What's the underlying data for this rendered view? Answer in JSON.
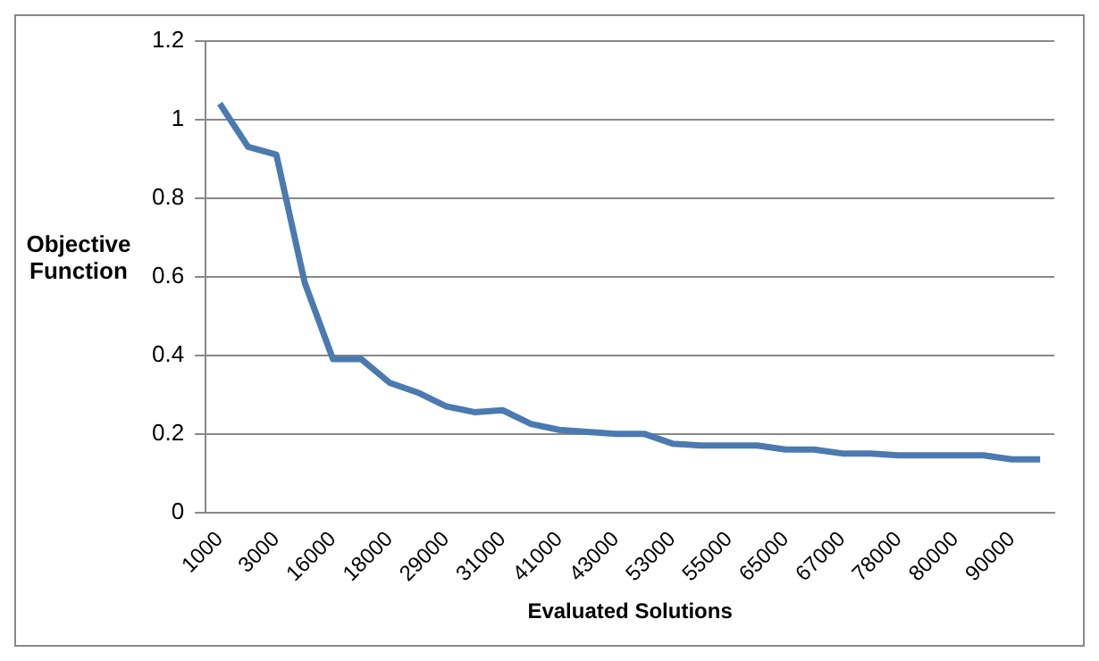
{
  "chart_data": {
    "type": "line",
    "xlabel": "Evaluated Solutions",
    "ylabel": "Objective Function",
    "categories": [
      "1000",
      null,
      "3000",
      null,
      "16000",
      null,
      "18000",
      null,
      "29000",
      null,
      "31000",
      null,
      "41000",
      null,
      "43000",
      null,
      "53000",
      null,
      "55000",
      null,
      "65000",
      null,
      "67000",
      null,
      "78000",
      null,
      "80000",
      null,
      "90000",
      null
    ],
    "series": [
      {
        "color": "#4a7ab0",
        "values": [
          1.04,
          0.93,
          0.91,
          0.585,
          0.39,
          0.39,
          0.33,
          0.305,
          0.27,
          0.255,
          0.26,
          0.225,
          0.21,
          0.205,
          0.2,
          0.2,
          0.175,
          0.17,
          0.17,
          0.17,
          0.16,
          0.16,
          0.15,
          0.15,
          0.145,
          0.145,
          0.145,
          0.145,
          0.135,
          0.135
        ]
      }
    ],
    "ylim": [
      0,
      1.2
    ],
    "yticks": [
      0,
      0.2,
      0.4,
      0.6,
      0.8,
      1,
      1.2
    ],
    "grid": "y",
    "legend": false,
    "marker": "none",
    "line_style": "solid"
  }
}
